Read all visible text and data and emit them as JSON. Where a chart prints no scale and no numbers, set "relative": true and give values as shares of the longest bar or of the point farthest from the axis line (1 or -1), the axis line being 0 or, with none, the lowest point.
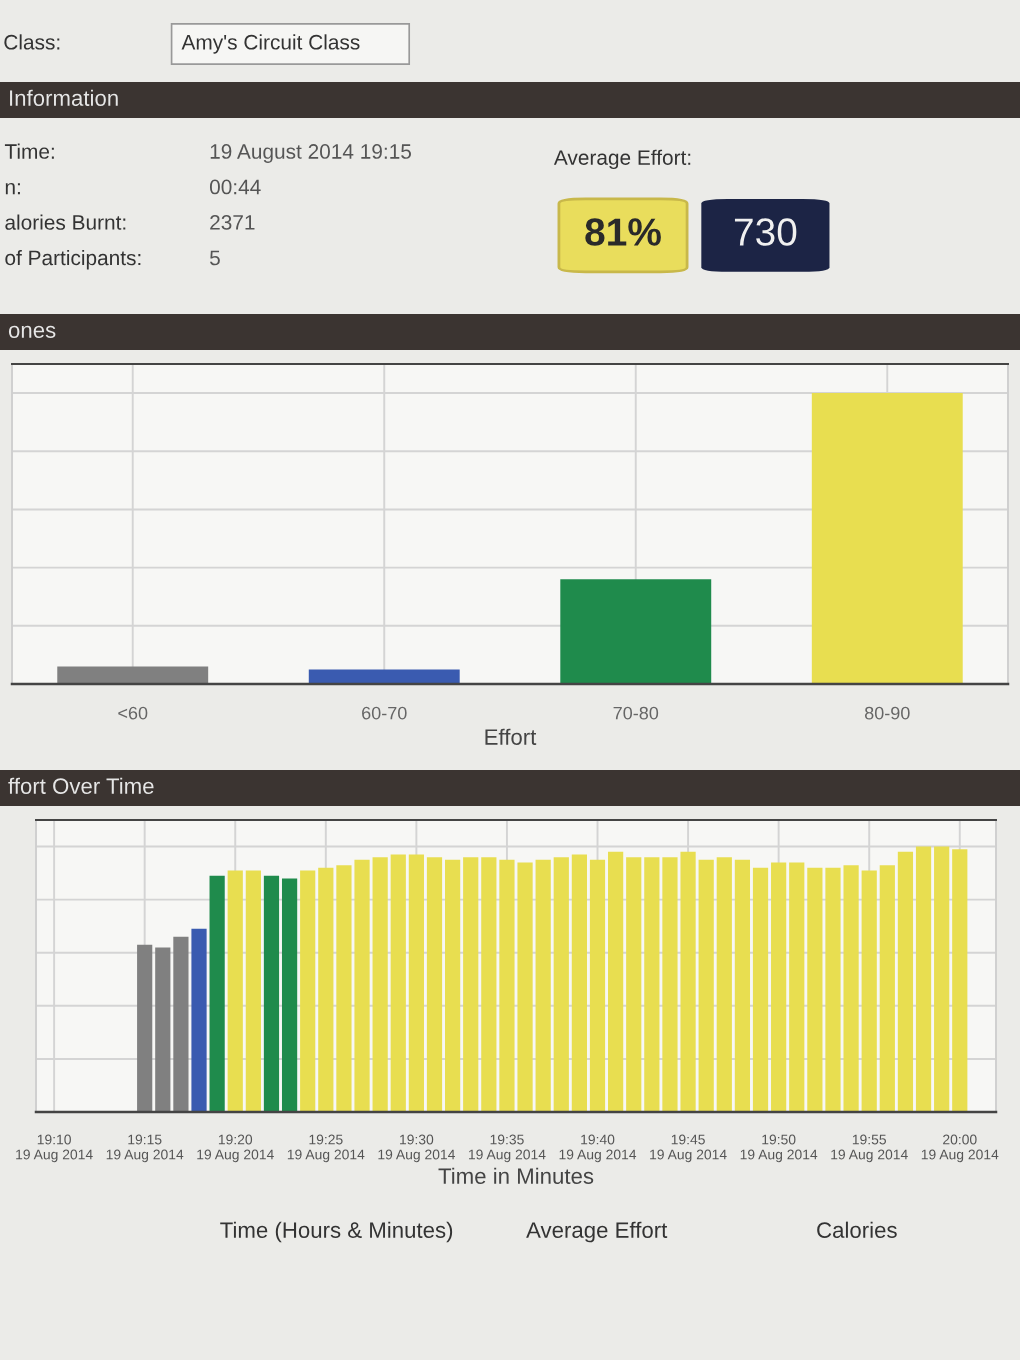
{
  "chart_data": [
    {
      "type": "other",
      "annotations": [
        "Class:",
        "Amy's Circuit Class"
      ]
    },
    {
      "type": "other",
      "title": "Information",
      "annotations": [
        "Time:",
        "19 August 2014 19:15",
        "n:",
        "00:44",
        "alories Burnt:",
        "2371",
        "of Participants:",
        "5",
        "Average Effort:",
        "81%",
        "730"
      ],
      "colors": [
        "#e9dd5c",
        "#1c2445"
      ]
    },
    {
      "type": "bar",
      "title": "ones",
      "categories": [
        "<60",
        "60-70",
        "70-80",
        "80-90"
      ],
      "values": [
        0.06,
        0.05,
        0.36,
        1
      ],
      "colors": [
        "#808080",
        "#3a5bb0",
        "#1f8b4c",
        "#e8de50"
      ],
      "xlabel": "Effort",
      "relative": true,
      "grid": true
    },
    {
      "type": "bar",
      "title": "ffort Over Time",
      "x": [
        "2014-08-19T19:15",
        "2014-08-19T19:16",
        "2014-08-19T19:17",
        "2014-08-19T19:18",
        "2014-08-19T19:19",
        "2014-08-19T19:20",
        "2014-08-19T19:21",
        "2014-08-19T19:22",
        "2014-08-19T19:23",
        "2014-08-19T19:24",
        "2014-08-19T19:25",
        "2014-08-19T19:26",
        "2014-08-19T19:27",
        "2014-08-19T19:28",
        "2014-08-19T19:29",
        "2014-08-19T19:30",
        "2014-08-19T19:31",
        "2014-08-19T19:32",
        "2014-08-19T19:33",
        "2014-08-19T19:34",
        "2014-08-19T19:35",
        "2014-08-19T19:36",
        "2014-08-19T19:37",
        "2014-08-19T19:38",
        "2014-08-19T19:39",
        "2014-08-19T19:40",
        "2014-08-19T19:41",
        "2014-08-19T19:42",
        "2014-08-19T19:43",
        "2014-08-19T19:44",
        "2014-08-19T19:45",
        "2014-08-19T19:46",
        "2014-08-19T19:47",
        "2014-08-19T19:48",
        "2014-08-19T19:49",
        "2014-08-19T19:50",
        "2014-08-19T19:51",
        "2014-08-19T19:52",
        "2014-08-19T19:53",
        "2014-08-19T19:54",
        "2014-08-19T19:55",
        "2014-08-19T19:56",
        "2014-08-19T19:57",
        "2014-08-19T19:58",
        "2014-08-19T19:59",
        "2014-08-19T20:00"
      ],
      "values": [
        0.63,
        0.62,
        0.66,
        0.69,
        0.89,
        0.91,
        0.91,
        0.89,
        0.88,
        0.91,
        0.92,
        0.93,
        0.95,
        0.96,
        0.97,
        0.97,
        0.96,
        0.95,
        0.96,
        0.96,
        0.95,
        0.94,
        0.95,
        0.96,
        0.97,
        0.95,
        0.98,
        0.96,
        0.96,
        0.96,
        0.98,
        0.95,
        0.96,
        0.95,
        0.92,
        0.94,
        0.94,
        0.92,
        0.92,
        0.93,
        0.91,
        0.93,
        0.98,
        1,
        1,
        0.99
      ],
      "colors": [
        "#808080",
        "#808080",
        "#808080",
        "#3a5bb0",
        "#1f8b4c",
        "#e8de50",
        "#e8de50",
        "#1f8b4c",
        "#1f8b4c",
        "#e8de50",
        "#e8de50",
        "#e8de50",
        "#e8de50",
        "#e8de50",
        "#e8de50",
        "#e8de50",
        "#e8de50",
        "#e8de50",
        "#e8de50",
        "#e8de50",
        "#e8de50",
        "#e8de50",
        "#e8de50",
        "#e8de50",
        "#e8de50",
        "#e8de50",
        "#e8de50",
        "#e8de50",
        "#e8de50",
        "#e8de50",
        "#e8de50",
        "#e8de50",
        "#e8de50",
        "#e8de50",
        "#e8de50",
        "#e8de50",
        "#e8de50",
        "#e8de50",
        "#e8de50",
        "#e8de50",
        "#e8de50",
        "#e8de50",
        "#e8de50",
        "#e8de50",
        "#e8de50",
        "#e8de50"
      ],
      "xlim": [
        "2014-08-19T19:09",
        "2014-08-19T20:02"
      ],
      "xticks": [
        {
          "value": "2014-08-19T19:10",
          "label": "19:10\n19 Aug 2014"
        },
        {
          "value": "2014-08-19T19:15",
          "label": "19:15\n19 Aug 2014"
        },
        {
          "value": "2014-08-19T19:20",
          "label": "19:20\n19 Aug 2014"
        },
        {
          "value": "2014-08-19T19:25",
          "label": "19:25\n19 Aug 2014"
        },
        {
          "value": "2014-08-19T19:30",
          "label": "19:30\n19 Aug 2014"
        },
        {
          "value": "2014-08-19T19:35",
          "label": "19:35\n19 Aug 2014"
        },
        {
          "value": "2014-08-19T19:40",
          "label": "19:40\n19 Aug 2014"
        },
        {
          "value": "2014-08-19T19:45",
          "label": "19:45\n19 Aug 2014"
        },
        {
          "value": "2014-08-19T19:50",
          "label": "19:50\n19 Aug 2014"
        },
        {
          "value": "2014-08-19T19:55",
          "label": "19:55\n19 Aug 2014"
        },
        {
          "value": "2014-08-19T20:00",
          "label": "20:00\n19 Aug 2014"
        }
      ],
      "xlabel": "Time in Minutes",
      "relative": true,
      "grid": true
    },
    {
      "type": "other",
      "annotations": [
        "Time (Hours & Minutes)",
        "Average Effort",
        "Calories"
      ]
    }
  ]
}
